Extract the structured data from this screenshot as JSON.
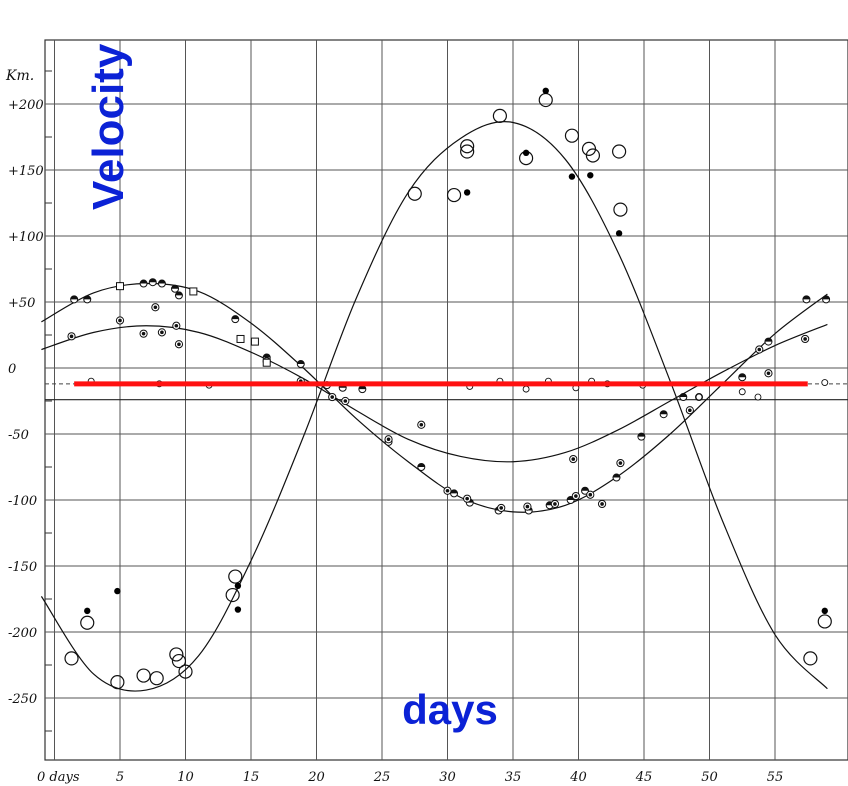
{
  "chart_data": {
    "type": "scatter",
    "title": "",
    "xlabel": "days",
    "ylabel": "Velocity",
    "y_unit": "Km.",
    "xlim": [
      -1,
      59
    ],
    "ylim": [
      -300,
      245
    ],
    "grid": true,
    "x_ticks": [
      "0 days",
      "5",
      "10",
      "15",
      "20",
      "25",
      "30",
      "35",
      "40",
      "45",
      "50",
      "55"
    ],
    "y_ticks": [
      "+200",
      "+150",
      "+100",
      "+50",
      "0",
      "-50",
      "-100",
      "-150",
      "-200",
      "-250"
    ],
    "reference_lines": [
      {
        "label": "",
        "style": "red-solid",
        "y": -12,
        "x_range": [
          1.5,
          57.5
        ]
      },
      {
        "label": "",
        "style": "dashed",
        "y": -12
      },
      {
        "label": "",
        "style": "solid",
        "y": -24
      }
    ],
    "series": [
      {
        "style": "open-circle-large",
        "points": [
          [
            1.3,
            -220
          ],
          [
            2.5,
            -193
          ],
          [
            4.8,
            -238
          ],
          [
            6.8,
            -233
          ],
          [
            7.8,
            -235
          ],
          [
            9.5,
            -222
          ],
          [
            9.3,
            -217
          ],
          [
            10,
            -230
          ],
          [
            13.8,
            -158
          ],
          [
            13.6,
            -172
          ],
          [
            27.5,
            132
          ],
          [
            30.5,
            131
          ],
          [
            31.5,
            168
          ],
          [
            31.5,
            164
          ],
          [
            34,
            191
          ],
          [
            36,
            159
          ],
          [
            37.5,
            203
          ],
          [
            39.5,
            176
          ],
          [
            40.8,
            166
          ],
          [
            41.1,
            161
          ],
          [
            43.1,
            164
          ],
          [
            43.2,
            120
          ],
          [
            57.7,
            -220
          ],
          [
            58.8,
            -192
          ]
        ]
      },
      {
        "style": "filled-dot",
        "points": [
          [
            2.5,
            -184
          ],
          [
            4.8,
            -169
          ],
          [
            14,
            -165
          ],
          [
            14,
            -183
          ],
          [
            31.5,
            133
          ],
          [
            36,
            163
          ],
          [
            37.5,
            210
          ],
          [
            39.5,
            145
          ],
          [
            40.9,
            146
          ],
          [
            43.1,
            102
          ],
          [
            58.8,
            -184
          ]
        ]
      },
      {
        "style": "half-filled-circle",
        "points": [
          [
            1.5,
            52
          ],
          [
            2.5,
            52
          ],
          [
            5,
            62
          ],
          [
            6.8,
            64
          ],
          [
            7.5,
            65
          ],
          [
            8.2,
            64
          ],
          [
            9.2,
            60
          ],
          [
            9.5,
            55
          ],
          [
            13.8,
            37
          ],
          [
            16.2,
            8
          ],
          [
            18.8,
            3
          ],
          [
            20.8,
            -13
          ],
          [
            22,
            -15
          ],
          [
            23.5,
            -16
          ],
          [
            25.5,
            -56
          ],
          [
            28,
            -75
          ],
          [
            30.5,
            -95
          ],
          [
            31.7,
            -102
          ],
          [
            33.9,
            -108
          ],
          [
            36.2,
            -108
          ],
          [
            37.8,
            -104
          ],
          [
            39.4,
            -100
          ],
          [
            40.5,
            -93
          ],
          [
            42.9,
            -83
          ],
          [
            44.8,
            -52
          ],
          [
            46.5,
            -35
          ],
          [
            48,
            -22
          ],
          [
            49.2,
            -22
          ],
          [
            52.5,
            -7
          ],
          [
            54.5,
            20
          ],
          [
            57.4,
            52
          ],
          [
            58.9,
            52
          ]
        ]
      },
      {
        "style": "circle-with-dot",
        "points": [
          [
            1.3,
            24
          ],
          [
            5,
            36
          ],
          [
            6.8,
            26
          ],
          [
            7.7,
            46
          ],
          [
            8.2,
            27
          ],
          [
            9.5,
            18
          ],
          [
            9.3,
            32
          ],
          [
            16.2,
            5
          ],
          [
            18.8,
            -10
          ],
          [
            21.2,
            -22
          ],
          [
            22.2,
            -25
          ],
          [
            25.5,
            -54
          ],
          [
            28,
            -43
          ],
          [
            30,
            -93
          ],
          [
            31.5,
            -99
          ],
          [
            34.1,
            -106
          ],
          [
            36.1,
            -105
          ],
          [
            38.2,
            -103
          ],
          [
            39.6,
            -69
          ],
          [
            39.8,
            -97
          ],
          [
            40.9,
            -96
          ],
          [
            41.8,
            -103
          ],
          [
            43.2,
            -72
          ],
          [
            48.5,
            -32
          ],
          [
            53.8,
            14
          ],
          [
            54.5,
            -4
          ],
          [
            57.3,
            22
          ]
        ]
      },
      {
        "style": "open-square",
        "points": [
          [
            5,
            62
          ],
          [
            10.6,
            58
          ],
          [
            14.2,
            22
          ],
          [
            15.3,
            20
          ],
          [
            16.2,
            4
          ]
        ]
      },
      {
        "style": "small-circle-near-zero",
        "points": [
          [
            2.8,
            -10
          ],
          [
            8,
            -12
          ],
          [
            11.8,
            -13
          ],
          [
            31.7,
            -14
          ],
          [
            34,
            -10
          ],
          [
            36,
            -16
          ],
          [
            37.7,
            -10
          ],
          [
            39.8,
            -15
          ],
          [
            41,
            -10
          ],
          [
            42.2,
            -12
          ],
          [
            44.9,
            -13
          ],
          [
            49.2,
            -22
          ],
          [
            52.5,
            -18
          ],
          [
            53.7,
            -22
          ],
          [
            58.8,
            -11
          ]
        ]
      }
    ],
    "fitted_curves": [
      {
        "style": "solid",
        "points": [
          [
            -1,
            -173
          ],
          [
            3,
            -232
          ],
          [
            7,
            -244
          ],
          [
            11,
            -218
          ],
          [
            15,
            -146
          ],
          [
            19,
            -52
          ],
          [
            23,
            52
          ],
          [
            27,
            133
          ],
          [
            31,
            174
          ],
          [
            35,
            186
          ],
          [
            39,
            158
          ],
          [
            43,
            88
          ],
          [
            47,
            -10
          ],
          [
            51,
            -116
          ],
          [
            55,
            -202
          ],
          [
            59,
            -243
          ]
        ]
      },
      {
        "style": "solid",
        "points": [
          [
            -1,
            35
          ],
          [
            3,
            57
          ],
          [
            7,
            64
          ],
          [
            11,
            58
          ],
          [
            15,
            34
          ],
          [
            19,
            0
          ],
          [
            23,
            -38
          ],
          [
            27,
            -71
          ],
          [
            31,
            -98
          ],
          [
            35,
            -109
          ],
          [
            39,
            -104
          ],
          [
            43,
            -82
          ],
          [
            47,
            -50
          ],
          [
            51,
            -12
          ],
          [
            55,
            26
          ],
          [
            59,
            56
          ]
        ]
      },
      {
        "style": "solid",
        "points": [
          [
            -1,
            14
          ],
          [
            3,
            27
          ],
          [
            7,
            32
          ],
          [
            11,
            27
          ],
          [
            15,
            12
          ],
          [
            19,
            -8
          ],
          [
            23,
            -32
          ],
          [
            27,
            -54
          ],
          [
            31,
            -67
          ],
          [
            35,
            -71
          ],
          [
            39,
            -64
          ],
          [
            43,
            -47
          ],
          [
            47,
            -25
          ],
          [
            51,
            -3
          ],
          [
            55,
            17
          ],
          [
            59,
            33
          ]
        ]
      }
    ]
  }
}
